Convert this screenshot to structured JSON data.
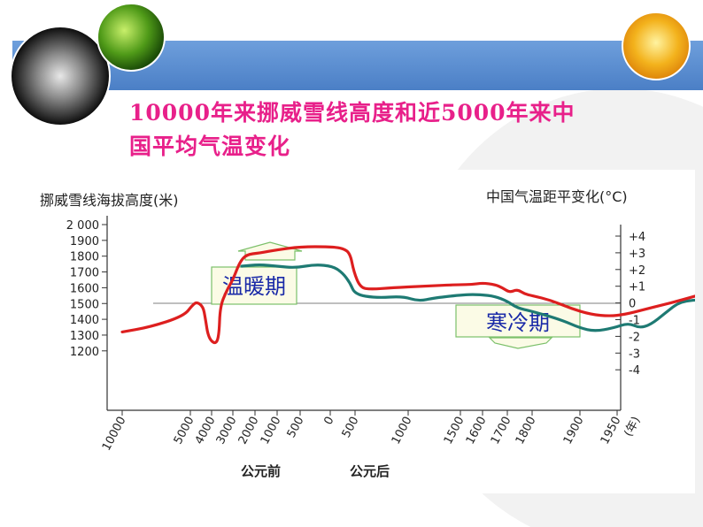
{
  "slide": {
    "title_line1": "10000年来挪威雪线高度和近5000年来中",
    "title_line2": "国平均气温变化"
  },
  "colors": {
    "header_band": "#5b8fd1",
    "title": "#e8208a",
    "snowline_series": "#dd1f1f",
    "temperature_series": "#1e7a73",
    "callout_text": "#1a2aa8"
  },
  "chart_data": {
    "type": "line",
    "title": "10000年来挪威雪线高度和近5000年来中国平均气温变化",
    "left_axis": {
      "label": "挪威雪线海拔高度(米)",
      "ticks": [
        "2 000",
        "1900",
        "1800",
        "1700",
        "1600",
        "1500",
        "1400",
        "1300",
        "1200"
      ],
      "tick_values": [
        2000,
        1900,
        1800,
        1700,
        1600,
        1500,
        1400,
        1300,
        1200
      ],
      "range": [
        1150,
        2000
      ]
    },
    "right_axis": {
      "label": "中国气温距平变化(°C)",
      "ticks": [
        "+4",
        "+3",
        "+2",
        "+1",
        "0",
        "-1",
        "-2",
        "-3",
        "-4"
      ],
      "tick_values": [
        4,
        3,
        2,
        1,
        0,
        -1,
        -2,
        -3,
        -4
      ]
    },
    "x_axis": {
      "ticks": [
        "10000",
        "5000",
        "4000",
        "3000",
        "2000",
        "1000",
        "500",
        "0",
        "500",
        "1000",
        "1500",
        "1600",
        "1700",
        "1800",
        "1900",
        "1950"
      ],
      "end_label": "(年)",
      "era_labels": [
        "公元前",
        "公元后"
      ]
    },
    "series": [
      {
        "key": "snowline",
        "color": "#dd1f1f",
        "points": [
          [
            0,
            1320
          ],
          [
            0.4,
            1350
          ],
          [
            0.9,
            1420
          ],
          [
            1.1,
            1490
          ],
          [
            1.3,
            1510
          ],
          [
            1.6,
            1480
          ],
          [
            1.7,
            1410
          ],
          [
            1.85,
            1280
          ],
          [
            2.2,
            1240
          ],
          [
            2.35,
            1300
          ],
          [
            2.4,
            1480
          ],
          [
            2.7,
            1580
          ],
          [
            3.0,
            1650
          ],
          [
            3.3,
            1760
          ],
          [
            3.6,
            1810
          ],
          [
            4.2,
            1820
          ],
          [
            5.0,
            1840
          ],
          [
            6.0,
            1860
          ],
          [
            7.0,
            1860
          ],
          [
            7.5,
            1850
          ],
          [
            7.8,
            1820
          ],
          [
            7.95,
            1700
          ],
          [
            8.1,
            1600
          ],
          [
            8.3,
            1590
          ],
          [
            8.7,
            1600
          ],
          [
            9.3,
            1610
          ],
          [
            10.0,
            1620
          ],
          [
            10.5,
            1620
          ],
          [
            11.0,
            1630
          ],
          [
            11.5,
            1620
          ],
          [
            11.8,
            1600
          ],
          [
            12.1,
            1570
          ],
          [
            12.4,
            1590
          ],
          [
            12.7,
            1560
          ],
          [
            13.0,
            1550
          ],
          [
            13.4,
            1520
          ],
          [
            13.8,
            1470
          ],
          [
            14.3,
            1430
          ],
          [
            14.8,
            1420
          ],
          [
            15.2,
            1430
          ],
          [
            15.7,
            1460
          ],
          [
            16.2,
            1490
          ],
          [
            16.7,
            1520
          ],
          [
            17.3,
            1560
          ],
          [
            17.8,
            1590
          ],
          [
            18.1,
            1610
          ]
        ]
      },
      {
        "key": "temperature_anomaly",
        "color": "#1e7a73",
        "points": [
          [
            3.4,
            2.2
          ],
          [
            4.2,
            2.3
          ],
          [
            5.0,
            2.2
          ],
          [
            5.8,
            2.1
          ],
          [
            6.5,
            2.3
          ],
          [
            7.1,
            2.2
          ],
          [
            7.5,
            1.8
          ],
          [
            7.8,
            1.2
          ],
          [
            8.0,
            0.5
          ],
          [
            8.4,
            0.3
          ],
          [
            8.9,
            0.4
          ],
          [
            9.2,
            0.1
          ],
          [
            9.5,
            0.3
          ],
          [
            10.2,
            0.5
          ],
          [
            10.9,
            0.5
          ],
          [
            11.5,
            0.4
          ],
          [
            12.0,
            0.1
          ],
          [
            12.4,
            -0.3
          ],
          [
            13.0,
            -0.5
          ],
          [
            13.6,
            -1.0
          ],
          [
            14.0,
            -1.5
          ],
          [
            14.4,
            -1.7
          ],
          [
            14.9,
            -1.5
          ],
          [
            15.3,
            -1.2
          ],
          [
            15.6,
            -1.5
          ],
          [
            15.9,
            -1.3
          ],
          [
            16.3,
            -0.6
          ],
          [
            16.7,
            0.1
          ],
          [
            17.3,
            0.2
          ],
          [
            17.8,
            0.4
          ],
          [
            18.1,
            0.5
          ]
        ]
      }
    ],
    "annotations": [
      {
        "text": "温暖期",
        "position": "upper-left",
        "arrow": "up"
      },
      {
        "text": "寒冷期",
        "position": "lower-right",
        "arrow": "down"
      }
    ]
  }
}
